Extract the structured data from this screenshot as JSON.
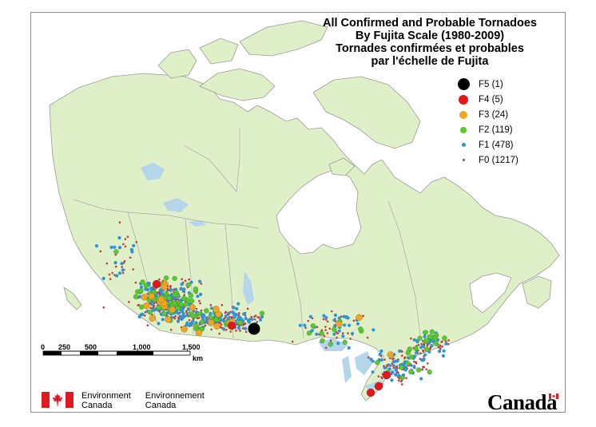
{
  "title": {
    "line1": "All Confirmed and Probable Tornadoes",
    "line2": "By Fujita Scale (1980-2009)",
    "line3": "Tornades confirmées et probables",
    "line4": "par l'échelle de Fujita"
  },
  "legend": [
    {
      "label": "F5 (1)",
      "color": "#000000"
    },
    {
      "label": "F4 (5)",
      "color": "#e8141b"
    },
    {
      "label": "F3 (24)",
      "color": "#f2a51e"
    },
    {
      "label": "F2 (119)",
      "color": "#55cc2a"
    },
    {
      "label": "F1 (478)",
      "color": "#2f94d3"
    },
    {
      "label": "F0 (1217)",
      "color": "#c23a3a"
    }
  ],
  "scale_bar": {
    "labels": [
      "0",
      "250",
      "500",
      "1,000",
      "1,500"
    ],
    "unit": "km"
  },
  "colors": {
    "land": "#dff0c8",
    "water": "#b5d6ea",
    "background": "#ffffff",
    "borders": "#a6a6a6"
  },
  "footer": {
    "department_en_1": "Environment",
    "department_en_2": "Canada",
    "department_fr_1": "Environnement",
    "department_fr_2": "Canada",
    "wordmark": "Canada"
  }
}
